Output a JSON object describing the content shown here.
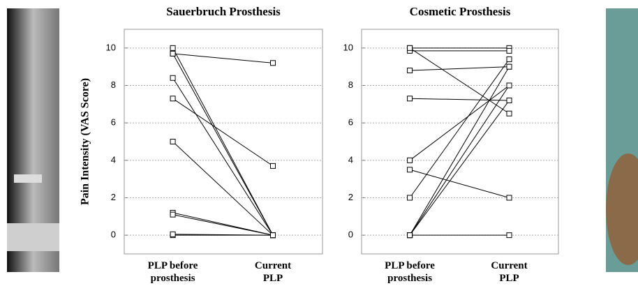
{
  "chart_data": [
    {
      "type": "slope",
      "title": "Sauerbruch Prosthesis",
      "y_label": "Pain Intensity (VAS Score)",
      "categories": [
        "PLP before\nprosthesis",
        "Current\nPLP"
      ],
      "ylim": [
        -1,
        11
      ],
      "yticks": [
        0,
        2,
        4,
        6,
        8,
        10
      ],
      "grid": true,
      "color": "#000000",
      "series": [
        {
          "values": [
            9.7,
            9.2
          ]
        },
        {
          "values": [
            10,
            0
          ]
        },
        {
          "values": [
            9.7,
            0
          ]
        },
        {
          "values": [
            8.4,
            0
          ]
        },
        {
          "values": [
            7.3,
            3.7
          ]
        },
        {
          "values": [
            5.0,
            0
          ]
        },
        {
          "values": [
            1.2,
            0
          ]
        },
        {
          "values": [
            1.1,
            0
          ]
        },
        {
          "values": [
            0,
            0
          ]
        },
        {
          "values": [
            0.05,
            0
          ]
        }
      ]
    },
    {
      "type": "slope",
      "title": "Cosmetic Prosthesis",
      "categories": [
        "PLP before\nprosthesis",
        "Current\nPLP"
      ],
      "ylim": [
        -1,
        11
      ],
      "yticks": [
        0,
        2,
        4,
        6,
        8,
        10
      ],
      "grid": true,
      "color": "#000000",
      "series": [
        {
          "values": [
            10,
            10
          ]
        },
        {
          "values": [
            9.85,
            9.85
          ]
        },
        {
          "values": [
            10,
            6.5
          ]
        },
        {
          "values": [
            8.8,
            9.0
          ]
        },
        {
          "values": [
            7.3,
            7.2
          ]
        },
        {
          "values": [
            4.0,
            8.0
          ]
        },
        {
          "values": [
            3.5,
            2.0
          ]
        },
        {
          "values": [
            2.0,
            9.4
          ]
        },
        {
          "values": [
            0,
            9.0
          ]
        },
        {
          "values": [
            0,
            8.0
          ]
        },
        {
          "values": [
            0,
            7.2
          ]
        },
        {
          "values": [
            0,
            0
          ]
        }
      ]
    }
  ]
}
